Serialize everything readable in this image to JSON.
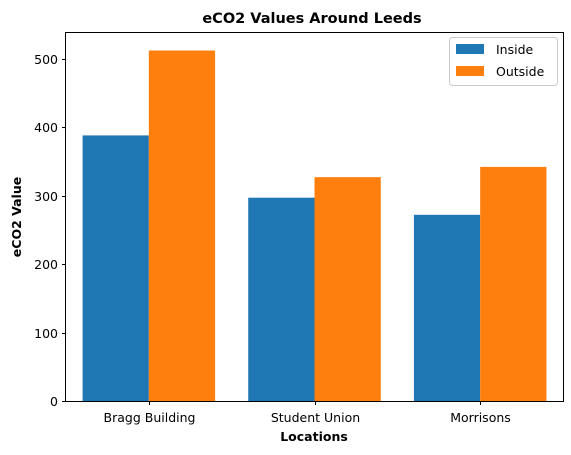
{
  "chart_data": {
    "type": "bar",
    "title": "eCO2 Values Around Leeds",
    "xlabel": "Locations",
    "ylabel": "eCO2 Value",
    "categories": [
      "Bragg Building",
      "Student Union",
      "Morrisons"
    ],
    "series": [
      {
        "name": "Inside",
        "values": [
          388,
          297,
          272
        ],
        "color": "#1f77b4"
      },
      {
        "name": "Outside",
        "values": [
          512,
          327,
          342
        ],
        "color": "#ff7f0e"
      }
    ],
    "ylim": [
      0,
      537.6
    ],
    "yticks": [
      "0",
      "100",
      "200",
      "300",
      "400",
      "500"
    ],
    "grid": false,
    "legend_position": "top-right"
  }
}
